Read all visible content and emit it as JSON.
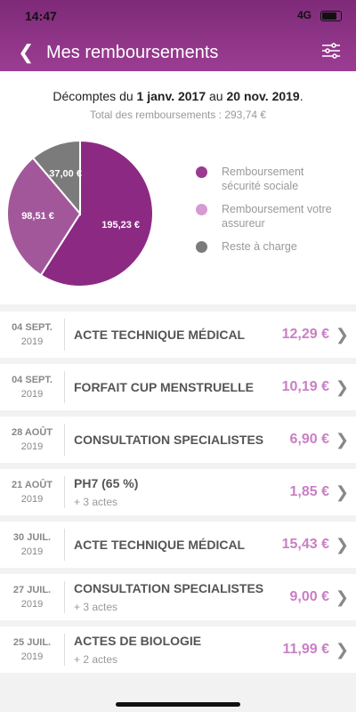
{
  "status_bar": {
    "time": "14:47",
    "network": "4G"
  },
  "header": {
    "title": "Mes remboursements"
  },
  "summary": {
    "prefix": "Décomptes du ",
    "start": "1 janv. 2017",
    "middle": " au ",
    "end": "20 nov. 2019",
    "suffix": ".",
    "total": "Total des remboursements : 293,74 €"
  },
  "chart_data": {
    "type": "pie",
    "labels": [
      "Remboursement sécurité sociale",
      "Remboursement votre assureur",
      "Reste à charge"
    ],
    "values": [
      195.23,
      98.51,
      37.0
    ],
    "value_labels": [
      "195,23 €",
      "98,51 €",
      "37,00 €"
    ],
    "colors": [
      "#8c2a83",
      "#a3579b",
      "#7b7b7b"
    ],
    "legend_colors": [
      "#9a3b90",
      "#d69bd2",
      "#7b7b7b"
    ]
  },
  "list": {
    "items": [
      {
        "day": "04 SEPT.",
        "year": "2019",
        "title": "ACTE TECHNIQUE MÉDICAL",
        "amount": "12,29 €"
      },
      {
        "day": "04 SEPT.",
        "year": "2019",
        "title": "FORFAIT CUP MENSTRUELLE",
        "amount": "10,19 €"
      },
      {
        "day": "28 AOÛT",
        "year": "2019",
        "title": "CONSULTATION SPECIALISTES",
        "amount": "6,90 €"
      },
      {
        "day": "21 AOÛT",
        "year": "2019",
        "title": "PH7 (65 %)",
        "sub": "+ 3 actes",
        "amount": "1,85 €"
      },
      {
        "day": "30 JUIL.",
        "year": "2019",
        "title": "ACTE TECHNIQUE MÉDICAL",
        "amount": "15,43 €"
      },
      {
        "day": "27 JUIL.",
        "year": "2019",
        "title": "CONSULTATION SPECIALISTES",
        "sub": "+ 3 actes",
        "amount": "9,00 €"
      },
      {
        "day": "25 JUIL.",
        "year": "2019",
        "title": "ACTES DE BIOLOGIE",
        "sub": "+ 2 actes",
        "amount": "11,99 €"
      }
    ]
  }
}
